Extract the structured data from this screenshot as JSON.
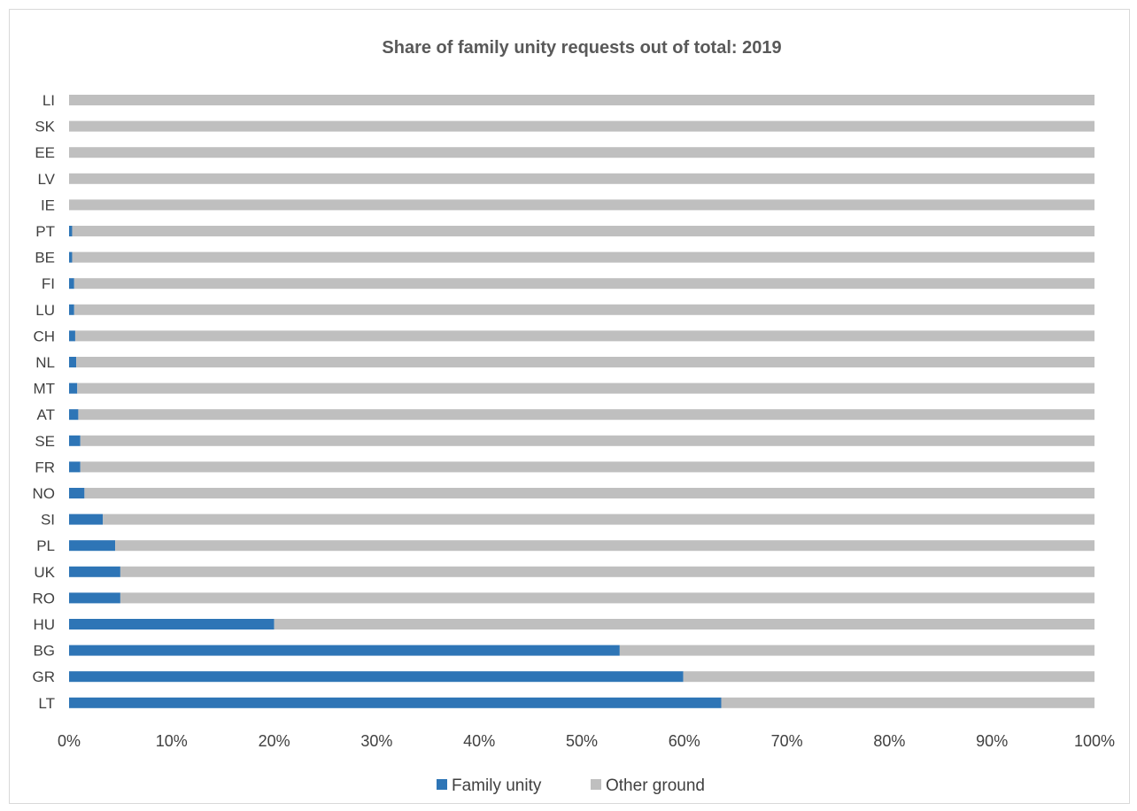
{
  "chart_data": {
    "type": "bar",
    "orientation": "horizontal",
    "stacked": true,
    "title": "Share of family unity requests out of total: 2019",
    "xlabel": "",
    "ylabel": "",
    "categories": [
      "LI",
      "SK",
      "EE",
      "LV",
      "IE",
      "PT",
      "BE",
      "FI",
      "LU",
      "CH",
      "NL",
      "MT",
      "AT",
      "SE",
      "FR",
      "NO",
      "SI",
      "PL",
      "UK",
      "RO",
      "HU",
      "BG",
      "GR",
      "LT"
    ],
    "series": [
      {
        "name": "Family unity",
        "color": "#2e75b6",
        "values": [
          0,
          0,
          0,
          0,
          0,
          0.3,
          0.3,
          0.5,
          0.5,
          0.6,
          0.7,
          0.8,
          0.9,
          1.1,
          1.1,
          1.5,
          3.3,
          4.5,
          5.0,
          5.0,
          20.0,
          53.7,
          59.9,
          63.6
        ]
      },
      {
        "name": "Other ground",
        "color": "#bfbfbf",
        "values": [
          100,
          100,
          100,
          100,
          100,
          99.7,
          99.7,
          99.5,
          99.5,
          99.4,
          99.3,
          99.2,
          99.1,
          98.9,
          98.9,
          98.5,
          96.7,
          95.5,
          95.0,
          95.0,
          80.0,
          46.3,
          40.1,
          36.4
        ]
      }
    ],
    "xlim": [
      0,
      100
    ],
    "xticks": [
      "0%",
      "10%",
      "20%",
      "30%",
      "40%",
      "50%",
      "60%",
      "70%",
      "80%",
      "90%",
      "100%"
    ],
    "grid": false,
    "legend": "bottom"
  }
}
